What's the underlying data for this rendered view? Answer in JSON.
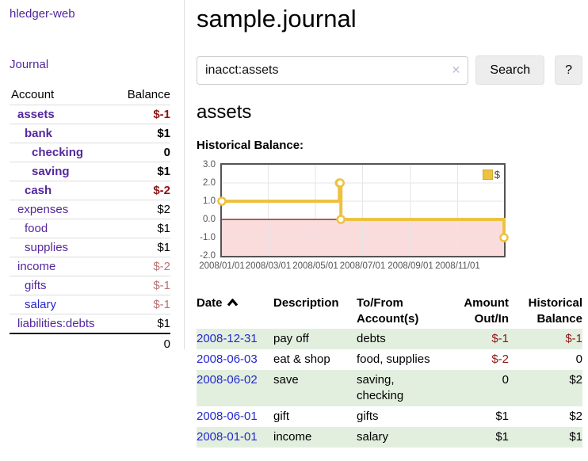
{
  "colors": {
    "link_purple": "#54279d",
    "link_blue": "#2427cc",
    "neg_strong": "#8f1414",
    "neg_soft": "#b97272",
    "stripe_green": "#e2efdf",
    "border_light": "#dddddd",
    "btn_bg": "#ededed",
    "btn_border": "#e2e2e2",
    "clear_icon": "#c4bbd9",
    "tick_label": "#545454"
  },
  "sidebar": {
    "app_title": "hledger-web",
    "nav_journal": "Journal",
    "accounts_table": {
      "headers": [
        "Account",
        "Balance"
      ],
      "rows": [
        {
          "name": "assets",
          "depth": 1,
          "bold": true,
          "balance": "$-1",
          "balance_class": "neg-strong"
        },
        {
          "name": "bank",
          "depth": 2,
          "bold": true,
          "balance": "$1",
          "balance_class": ""
        },
        {
          "name": "checking",
          "depth": 3,
          "bold": true,
          "balance": "0",
          "balance_class": ""
        },
        {
          "name": "saving",
          "depth": 3,
          "bold": true,
          "balance": "$1",
          "balance_class": ""
        },
        {
          "name": "cash",
          "depth": 2,
          "bold": true,
          "balance": "$-2",
          "balance_class": "neg-strong"
        },
        {
          "name": "expenses",
          "depth": 1,
          "bold": false,
          "balance": "$2",
          "balance_class": ""
        },
        {
          "name": "food",
          "depth": 2,
          "bold": false,
          "balance": "$1",
          "balance_class": ""
        },
        {
          "name": "supplies",
          "depth": 2,
          "bold": false,
          "balance": "$1",
          "balance_class": ""
        },
        {
          "name": "income",
          "depth": 1,
          "bold": false,
          "balance": "$-2",
          "balance_class": "neg-soft"
        },
        {
          "name": "gifts",
          "depth": 2,
          "bold": false,
          "balance": "$-1",
          "balance_class": "neg-soft"
        },
        {
          "name": "salary",
          "depth": 2,
          "bold": false,
          "link_blue": true,
          "balance": "$-1",
          "balance_class": "neg-soft"
        },
        {
          "name": "liabilities:debts",
          "depth": 1,
          "bold": false,
          "balance": "$1",
          "balance_class": ""
        }
      ],
      "total": "0"
    }
  },
  "main": {
    "title": "sample.journal",
    "search": {
      "value": "inacct:assets",
      "clear_icon": "✕",
      "button": "Search",
      "help_button": "?"
    },
    "account_heading": "assets",
    "chart_label": "Historical Balance:"
  },
  "chart_data": {
    "type": "line",
    "subtype": "step",
    "title": "Historical Balance",
    "series": [
      {
        "name": "$",
        "color": "#edc240",
        "points": [
          {
            "date": "2008-01-01",
            "value": 1
          },
          {
            "date": "2008-06-01",
            "value": 2
          },
          {
            "date": "2008-06-02",
            "value": 2
          },
          {
            "date": "2008-06-03",
            "value": 0
          },
          {
            "date": "2008-12-31",
            "value": -1
          }
        ]
      }
    ],
    "x_range": [
      "2008-01-01",
      "2008-12-31"
    ],
    "y_range": [
      -2,
      3
    ],
    "x_ticks": [
      {
        "date": "2008-01-01",
        "label": "2008/01/01"
      },
      {
        "date": "2008-03-01",
        "label": "2008/03/01"
      },
      {
        "date": "2008-05-01",
        "label": "2008/05/01"
      },
      {
        "date": "2008-07-01",
        "label": "2008/07/01"
      },
      {
        "date": "2008-09-01",
        "label": "2008/09/01"
      },
      {
        "date": "2008-11-01",
        "label": "2008/11/01"
      }
    ],
    "y_ticks": [
      {
        "value": 3,
        "label": "3.0"
      },
      {
        "value": 2,
        "label": "2.0"
      },
      {
        "value": 1,
        "label": "1.0"
      },
      {
        "value": 0,
        "label": "0.0"
      },
      {
        "value": -1,
        "label": "-1.0"
      },
      {
        "value": -2,
        "label": "-2.0"
      }
    ],
    "grid": true,
    "legend_position": "top-right",
    "negative_fill": "#fbdcdc",
    "zero_line_color": "#8b0000",
    "border_color": "#545454",
    "grid_color": "#e6e6e6"
  },
  "register": {
    "headers": [
      {
        "line1": "Date",
        "line2": "",
        "sort": "ascending"
      },
      {
        "line1": "Description",
        "line2": ""
      },
      {
        "line1": "To/From",
        "line2": "Account(s)"
      },
      {
        "line1": "Amount",
        "line2": "Out/In"
      },
      {
        "line1": "Historical",
        "line2": "Balance"
      }
    ],
    "rows": [
      {
        "date": "2008-12-31",
        "description": "pay off",
        "accounts": "debts",
        "amount": "$-1",
        "amount_neg": true,
        "balance": "$-1",
        "balance_neg": true
      },
      {
        "date": "2008-06-03",
        "description": "eat & shop",
        "accounts": "food, supplies",
        "amount": "$-2",
        "amount_neg": true,
        "balance": "0",
        "balance_neg": false
      },
      {
        "date": "2008-06-02",
        "description": "save",
        "accounts": "saving, checking",
        "amount": "0",
        "amount_neg": false,
        "balance": "$2",
        "balance_neg": false
      },
      {
        "date": "2008-06-01",
        "description": "gift",
        "accounts": "gifts",
        "amount": "$1",
        "amount_neg": false,
        "balance": "$2",
        "balance_neg": false
      },
      {
        "date": "2008-01-01",
        "description": "income",
        "accounts": "salary",
        "amount": "$1",
        "amount_neg": false,
        "balance": "$1",
        "balance_neg": false
      }
    ]
  }
}
